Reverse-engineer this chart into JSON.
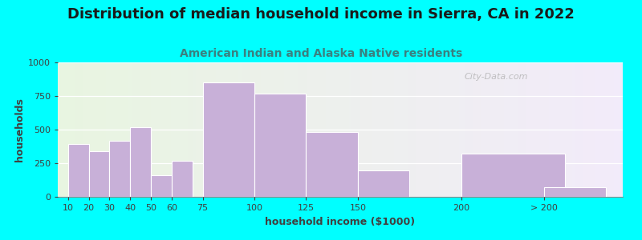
{
  "title": "Distribution of median household income in Sierra, CA in 2022",
  "subtitle": "American Indian and Alaska Native residents",
  "xlabel": "household income ($1000)",
  "ylabel": "households",
  "background_color": "#00ffff",
  "bar_color": "#c8b0d8",
  "bar_edge_color": "#ffffff",
  "categories": [
    "10",
    "20",
    "30",
    "40",
    "50",
    "60",
    "75",
    "100",
    "125",
    "150",
    "200",
    "> 200"
  ],
  "values": [
    390,
    340,
    415,
    515,
    160,
    270,
    850,
    770,
    480,
    195,
    320,
    70
  ],
  "bar_positions": [
    10,
    20,
    30,
    40,
    50,
    60,
    75,
    100,
    125,
    150,
    200,
    240
  ],
  "bar_actual_widths": [
    10,
    10,
    10,
    10,
    10,
    10,
    25,
    25,
    25,
    25,
    50,
    30
  ],
  "ylim": [
    0,
    1000
  ],
  "yticks": [
    0,
    250,
    500,
    750,
    1000
  ],
  "title_fontsize": 13,
  "subtitle_fontsize": 10,
  "subtitle_color": "#3a8080",
  "title_color": "#1a1a1a",
  "watermark": "City-Data.com",
  "xlim_left": 5,
  "xlim_right": 278
}
